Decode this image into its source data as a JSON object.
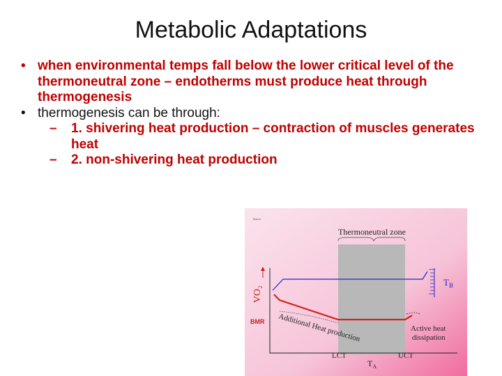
{
  "slide": {
    "title": "Metabolic Adaptations",
    "bullets": [
      {
        "marker": "•",
        "text": "when environmental temps fall below the lower critical level of the thermoneutral zone – endotherms must produce heat through thermogenesis"
      },
      {
        "marker": "•",
        "text": "thermogenesis can be through:"
      }
    ],
    "subbullets": [
      {
        "marker": "–",
        "text": "1. shivering heat production – contraction of muscles generates heat"
      },
      {
        "marker": "–",
        "text": "2. non-shivering heat production"
      }
    ]
  },
  "figure": {
    "corner_label": "Source",
    "zone_label": "Thermoneutral zone",
    "y_label": "VO₂",
    "tb_label": "T",
    "tb_sub": "B",
    "bmr_label": "BMR",
    "additional_label": "Additional Heat production",
    "active_label_1": "Active heat",
    "active_label_2": "dissipation",
    "lct_label": "LCT",
    "uct_label": "UCT",
    "ta_label": "T",
    "ta_sub": "A",
    "colors": {
      "background": "#f8cfe0",
      "zone": "#b8b8b8",
      "red_line": "#d42020",
      "blue_line": "#2424c8"
    }
  }
}
